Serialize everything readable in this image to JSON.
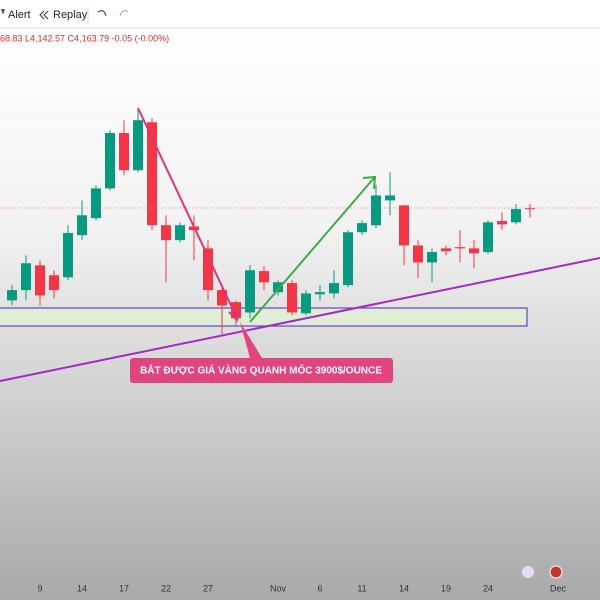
{
  "toolbar": {
    "alert": "Alert",
    "replay": "Replay"
  },
  "legend_text": "68.83 L4,142.57 C4,163.79 -0.05 (-0.00%)",
  "annotation": "BẮT ĐƯỢC GIÁ VÀNG QUANH MỐC 3900$/OUNCE",
  "chart_data": {
    "type": "candlestick",
    "categories": [
      null,
      null,
      "9",
      null,
      null,
      "14",
      null,
      null,
      "17",
      null,
      null,
      "22",
      null,
      null,
      "27",
      null,
      null,
      null,
      null,
      "Nov",
      null,
      null,
      "6",
      null,
      null,
      "11",
      null,
      null,
      "14",
      null,
      null,
      "19",
      null,
      null,
      "24",
      null,
      null,
      null,
      null,
      "Dec"
    ],
    "open": [
      3941,
      3966,
      4026,
      4002,
      3997,
      4099,
      4140,
      4212,
      4346,
      4256,
      4372,
      4123,
      4087,
      4120,
      4067,
      3966,
      3937,
      3912,
      4012,
      3961,
      3983,
      3910,
      3956,
      3958,
      3978,
      4106,
      4123,
      4183,
      4171,
      4074,
      4033,
      4067,
      4070,
      4067,
      4058,
      4133,
      4130,
      4164,
      null,
      null
    ],
    "high": [
      3978,
      4050,
      4038,
      4014,
      4123,
      4183,
      4220,
      4353,
      4377,
      4406,
      4382,
      4147,
      4130,
      4147,
      4087,
      3978,
      3941,
      4026,
      4024,
      3990,
      3990,
      3966,
      3978,
      4014,
      4111,
      4135,
      4220,
      4251,
      4171,
      4087,
      4067,
      4074,
      4111,
      4087,
      4135,
      4154,
      4174,
      4174,
      null,
      null
    ],
    "low": [
      3929,
      3941,
      3929,
      3946,
      3990,
      4087,
      4135,
      4207,
      4244,
      4251,
      4111,
      3985,
      4082,
      4038,
      3941,
      3857,
      3881,
      3898,
      3966,
      3953,
      3905,
      3905,
      3941,
      3946,
      3973,
      4099,
      4116,
      4147,
      4026,
      3995,
      3985,
      4050,
      4033,
      4019,
      4053,
      4111,
      4125,
      4142,
      null,
      null
    ],
    "close": [
      3966,
      4031,
      3953,
      3966,
      4104,
      4147,
      4212,
      4346,
      4256,
      4377,
      4123,
      4087,
      4123,
      4111,
      3966,
      3929,
      3898,
      4014,
      3985,
      3985,
      3912,
      3958,
      3961,
      3983,
      4106,
      4128,
      4195,
      4195,
      4074,
      4033,
      4058,
      4060,
      4067,
      4055,
      4130,
      4125,
      4162,
      4162,
      null,
      null
    ],
    "up_color": "#089981",
    "down_color": "#f23645",
    "ylim": [
      3260,
      4600
    ]
  }
}
